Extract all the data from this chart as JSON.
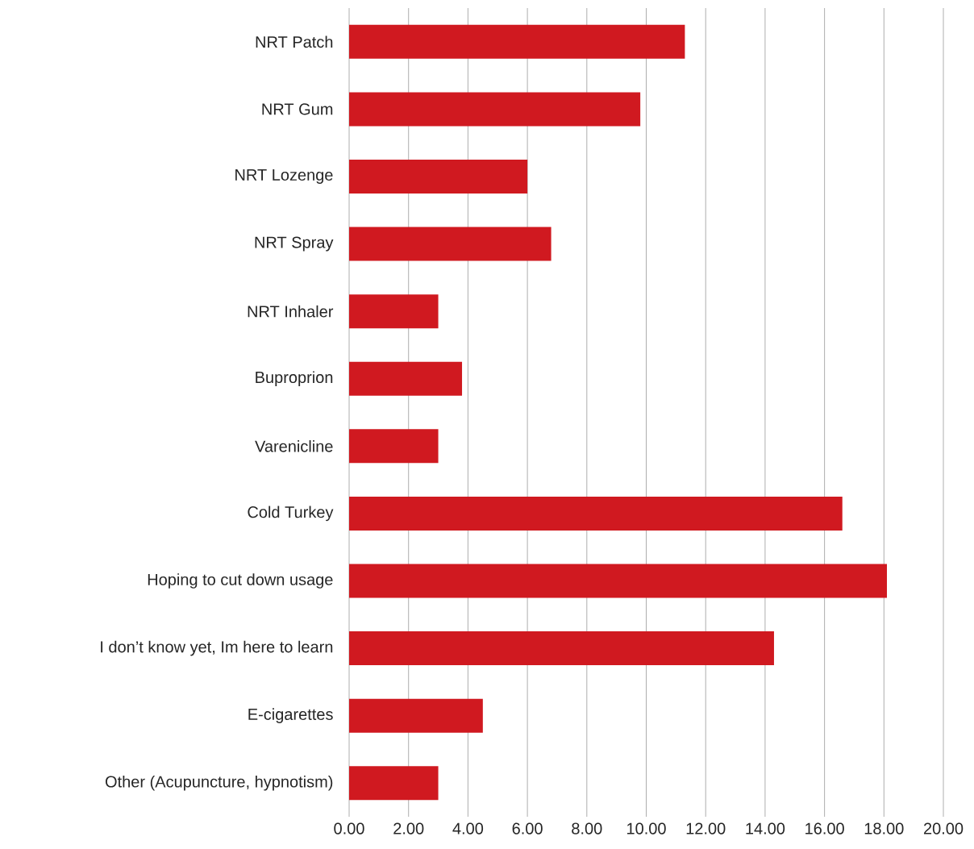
{
  "chart_data": {
    "type": "bar",
    "orientation": "horizontal",
    "color": "#d01920",
    "categories": [
      "NRT Patch",
      "NRT Gum",
      "NRT Lozenge",
      "NRT Spray",
      "NRT Inhaler",
      "Buproprion",
      "Varenicline",
      "Cold Turkey",
      "Hoping to cut down usage",
      "I don’t know yet, Im here to learn",
      "E-cigarettes",
      "Other (Acupuncture, hypnotism)"
    ],
    "values": [
      11.3,
      9.8,
      6.0,
      6.8,
      3.0,
      3.8,
      3.0,
      16.6,
      18.1,
      14.3,
      4.5,
      3.0
    ],
    "xlim": [
      0,
      20
    ],
    "xticks": [
      {
        "value": 0,
        "label": "0.00"
      },
      {
        "value": 2,
        "label": "2.00"
      },
      {
        "value": 4,
        "label": "4.00"
      },
      {
        "value": 6,
        "label": "6.00"
      },
      {
        "value": 8,
        "label": "8.00"
      },
      {
        "value": 10,
        "label": "10.00"
      },
      {
        "value": 12,
        "label": "12.00"
      },
      {
        "value": 14,
        "label": "14.00"
      },
      {
        "value": 16,
        "label": "16.00"
      },
      {
        "value": 18,
        "label": "18.00"
      },
      {
        "value": 20,
        "label": "20.00"
      }
    ],
    "grid": "x"
  }
}
